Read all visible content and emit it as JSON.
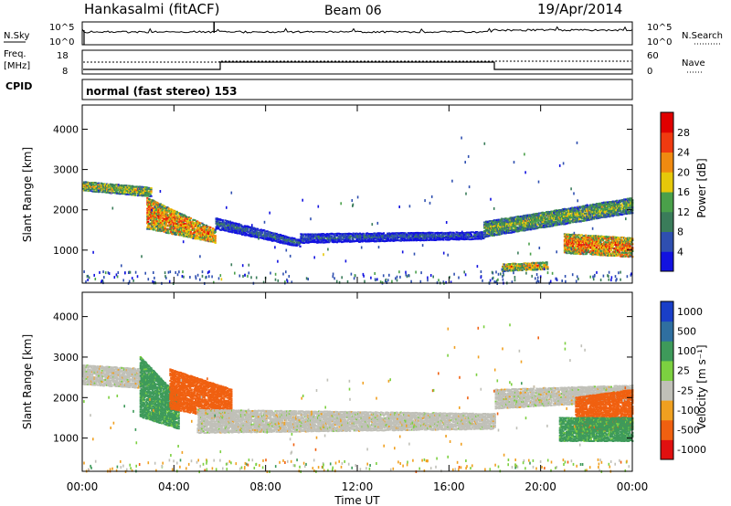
{
  "header": {
    "station": "Hankasalmi (fitACF)",
    "beam": "Beam 06",
    "date": "19/Apr/2014"
  },
  "nsky_panel": {
    "left_label": "N.Sky",
    "left_ticks": [
      "10^5",
      "10^0"
    ],
    "right_ticks": [
      "10^5",
      "10^0"
    ],
    "right_label": "N.Search"
  },
  "freq_panel": {
    "left_label_1": "Freq.",
    "left_label_2": "[MHz]",
    "left_ticks": [
      "18",
      "8"
    ],
    "right_ticks": [
      "60",
      "0"
    ],
    "right_label": "Nave"
  },
  "cpid": {
    "label": "CPID",
    "program": "normal (fast stereo) 153"
  },
  "time_axis": {
    "ticks": [
      "00:00",
      "04:00",
      "08:00",
      "12:00",
      "16:00",
      "20:00",
      "00:00"
    ],
    "label": "Time UT"
  },
  "chart_data": [
    {
      "type": "heatmap",
      "title": "Power",
      "ylabel": "Slant Range [km]",
      "xlabel": "Time UT",
      "xlim": [
        0,
        24
      ],
      "ylim": [
        180,
        4600
      ],
      "yticks": [
        "1000",
        "2000",
        "3000",
        "4000"
      ],
      "colorbar": {
        "label": "Power [dB]",
        "ticks": [
          "4",
          "8",
          "12",
          "16",
          "20",
          "24",
          "28"
        ],
        "range": [
          0,
          32
        ],
        "colors": [
          "#1212e0",
          "#2f4fb0",
          "#3a7c5a",
          "#4aa04a",
          "#e6c80a",
          "#f08a10",
          "#f03a10",
          "#e00000"
        ]
      },
      "regions": [
        {
          "name": "pre-dawn E/F band",
          "t0": 0,
          "t1": 3.0,
          "r_from": [
            2450,
            2700
          ],
          "r_to": [
            2300,
            2550
          ],
          "level": 20
        },
        {
          "name": "morning high-power echoes",
          "t0": 2.8,
          "t1": 5.8,
          "r_from": [
            1500,
            2300
          ],
          "r_to": [
            1150,
            1500
          ],
          "level": 27
        },
        {
          "name": "daytime descending band",
          "t0": 5.8,
          "t1": 9.5,
          "r_from": [
            1500,
            1800
          ],
          "r_to": [
            1050,
            1250
          ],
          "level": 10
        },
        {
          "name": "daytime band",
          "t0": 9.5,
          "t1": 17.5,
          "r_from": [
            1150,
            1400
          ],
          "r_to": [
            1250,
            1450
          ],
          "level": 9
        },
        {
          "name": "evening rising band",
          "t0": 17.5,
          "t1": 24,
          "r_from": [
            1300,
            1700
          ],
          "r_to": [
            1900,
            2300
          ],
          "level": 18
        },
        {
          "name": "evening near-range strong",
          "t0": 21,
          "t1": 24,
          "r_from": [
            900,
            1400
          ],
          "r_to": [
            800,
            1300
          ],
          "level": 28
        },
        {
          "name": "evening short band",
          "t0": 18.3,
          "t1": 20.3,
          "r_from": [
            450,
            650
          ],
          "r_to": [
            500,
            700
          ],
          "level": 24
        }
      ]
    },
    {
      "type": "heatmap",
      "title": "Velocity",
      "ylabel": "Slant Range [km]",
      "xlabel": "Time UT",
      "xlim": [
        0,
        24
      ],
      "ylim": [
        180,
        4600
      ],
      "yticks": [
        "1000",
        "2000",
        "3000",
        "4000"
      ],
      "colorbar": {
        "label": "Velocity [m s⁻¹]",
        "ticks": [
          "1000",
          "500",
          "100",
          "25",
          "-25",
          "-100",
          "-500",
          "-1000"
        ],
        "colors": [
          "#1a3fc8",
          "#2f6fa0",
          "#3e9a5a",
          "#7cd040",
          "#c0c0b8",
          "#f0a020",
          "#f06010",
          "#e01010"
        ]
      },
      "regions": [
        {
          "name": "pre-dawn low velocity",
          "t0": 0,
          "t1": 2.8,
          "r_from": [
            2300,
            2800
          ],
          "r_to": [
            2200,
            2700
          ],
          "velocity": 0
        },
        {
          "name": "morning positive velocity",
          "t0": 2.5,
          "t1": 4.2,
          "r_from": [
            1500,
            3000
          ],
          "r_to": [
            1200,
            2000
          ],
          "velocity": 150
        },
        {
          "name": "morning negative velocity",
          "t0": 3.8,
          "t1": 6.5,
          "r_from": [
            1700,
            2700
          ],
          "r_to": [
            1400,
            2200
          ],
          "velocity": -300
        },
        {
          "name": "daytime ground scatter",
          "t0": 5.0,
          "t1": 18,
          "r_from": [
            1100,
            1700
          ],
          "r_to": [
            1200,
            1600
          ],
          "velocity": 0
        },
        {
          "name": "evening ground scatter",
          "t0": 18,
          "t1": 24,
          "r_from": [
            1700,
            2200
          ],
          "r_to": [
            1900,
            2300
          ],
          "velocity": 0
        },
        {
          "name": "evening negative velocity",
          "t0": 21.5,
          "t1": 24,
          "r_from": [
            1100,
            2000
          ],
          "r_to": [
            1200,
            2200
          ],
          "velocity": -300
        },
        {
          "name": "evening positive velocity",
          "t0": 20.8,
          "t1": 24,
          "r_from": [
            900,
            1500
          ],
          "r_to": [
            900,
            1500
          ],
          "velocity": 150
        }
      ]
    }
  ]
}
